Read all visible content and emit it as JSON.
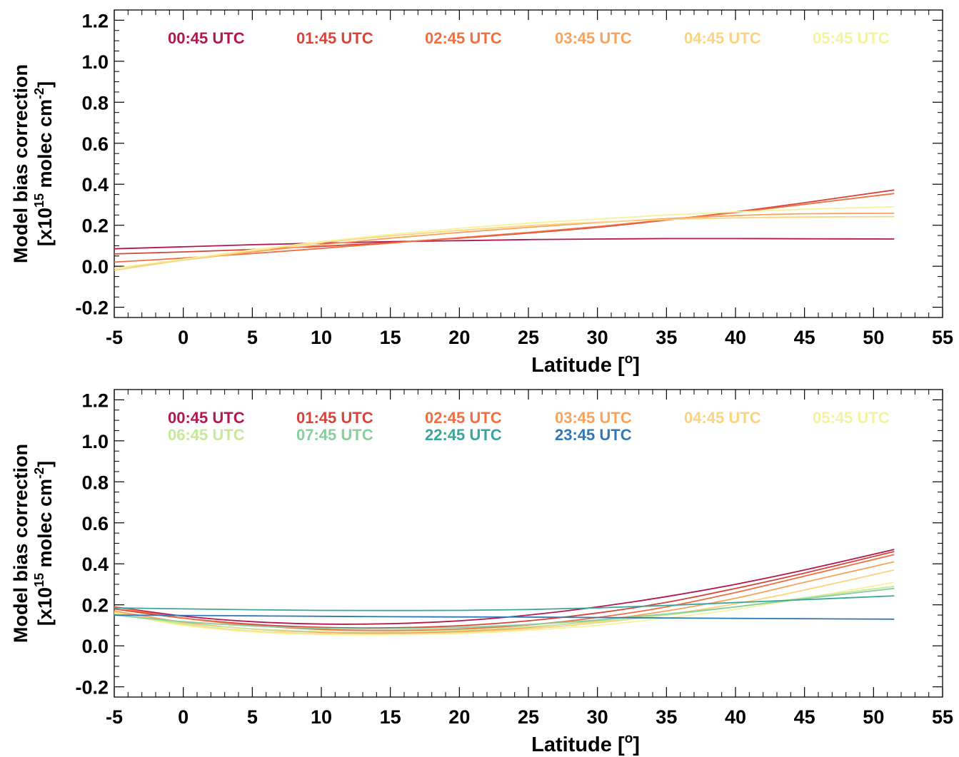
{
  "chart_data": [
    {
      "type": "line",
      "xlabel": "Latitude [",
      "xlabel_sup": "o",
      "xlabel_end": "]",
      "ylabel_line1": "Model bias correction",
      "ylabel_line2_pre": "[x10",
      "ylabel_line2_sup1": "15",
      "ylabel_line2_mid": " molec cm",
      "ylabel_line2_sup2": "-2",
      "ylabel_line2_end": "]",
      "xlim": [
        -5,
        55
      ],
      "ylim": [
        -0.25,
        1.25
      ],
      "x_ticks": [
        "-5",
        "0",
        "5",
        "10",
        "15",
        "20",
        "25",
        "30",
        "35",
        "40",
        "45",
        "50",
        "55"
      ],
      "y_ticks": [
        "-0.2",
        "0.0",
        "0.2",
        "0.4",
        "0.6",
        "0.8",
        "1.0",
        "1.2"
      ],
      "x_sample": [
        -5,
        0,
        5,
        10,
        15,
        20,
        25,
        30,
        35,
        40,
        45,
        51.5
      ],
      "series": [
        {
          "name": "00:45 UTC",
          "color": "#b2184f",
          "values": [
            0.085,
            0.095,
            0.105,
            0.113,
            0.12,
            0.125,
            0.13,
            0.133,
            0.135,
            0.135,
            0.134,
            0.133
          ]
        },
        {
          "name": "01:45 UTC",
          "color": "#d7443a",
          "values": [
            0.06,
            0.07,
            0.082,
            0.097,
            0.115,
            0.137,
            0.162,
            0.19,
            0.225,
            0.265,
            0.31,
            0.372
          ]
        },
        {
          "name": "02:45 UTC",
          "color": "#ef6f40",
          "values": [
            0.02,
            0.04,
            0.062,
            0.087,
            0.113,
            0.139,
            0.165,
            0.193,
            0.226,
            0.262,
            0.302,
            0.355
          ]
        },
        {
          "name": "03:45 UTC",
          "color": "#f8a35c",
          "values": [
            -0.01,
            0.03,
            0.07,
            0.105,
            0.137,
            0.165,
            0.19,
            0.213,
            0.232,
            0.247,
            0.256,
            0.258
          ]
        },
        {
          "name": "04:45 UTC",
          "color": "#fcd480",
          "values": [
            -0.02,
            0.03,
            0.075,
            0.115,
            0.148,
            0.175,
            0.198,
            0.215,
            0.228,
            0.236,
            0.24,
            0.242
          ]
        },
        {
          "name": "05:45 UTC",
          "color": "#f5f39d",
          "values": [
            -0.01,
            0.035,
            0.08,
            0.12,
            0.155,
            0.185,
            0.21,
            0.23,
            0.25,
            0.265,
            0.278,
            0.29
          ]
        }
      ]
    },
    {
      "type": "line",
      "xlabel": "Latitude [",
      "xlabel_sup": "o",
      "xlabel_end": "]",
      "ylabel_line1": "Model bias correction",
      "ylabel_line2_pre": "[x10",
      "ylabel_line2_sup1": "15",
      "ylabel_line2_mid": " molec cm",
      "ylabel_line2_sup2": "-2",
      "ylabel_line2_end": "]",
      "xlim": [
        -5,
        55
      ],
      "ylim": [
        -0.25,
        1.25
      ],
      "x_ticks": [
        "-5",
        "0",
        "5",
        "10",
        "15",
        "20",
        "25",
        "30",
        "35",
        "40",
        "45",
        "50",
        "55"
      ],
      "y_ticks": [
        "-0.2",
        "0.0",
        "0.2",
        "0.4",
        "0.6",
        "0.8",
        "1.0",
        "1.2"
      ],
      "x_sample": [
        -5,
        0,
        5,
        10,
        15,
        20,
        25,
        30,
        35,
        40,
        45,
        51.5
      ],
      "series": [
        {
          "name": "00:45 UTC",
          "color": "#b2184f",
          "values": [
            0.19,
            0.145,
            0.118,
            0.106,
            0.108,
            0.122,
            0.15,
            0.19,
            0.24,
            0.3,
            0.37,
            0.47
          ]
        },
        {
          "name": "01:45 UTC",
          "color": "#d7443a",
          "values": [
            0.18,
            0.135,
            0.105,
            0.09,
            0.088,
            0.098,
            0.122,
            0.16,
            0.212,
            0.28,
            0.355,
            0.46
          ]
        },
        {
          "name": "02:45 UTC",
          "color": "#ef6f40",
          "values": [
            0.19,
            0.135,
            0.1,
            0.08,
            0.075,
            0.082,
            0.102,
            0.138,
            0.19,
            0.26,
            0.34,
            0.445
          ]
        },
        {
          "name": "03:45 UTC",
          "color": "#f8a35c",
          "values": [
            0.17,
            0.115,
            0.082,
            0.066,
            0.062,
            0.07,
            0.09,
            0.123,
            0.17,
            0.232,
            0.31,
            0.41
          ]
        },
        {
          "name": "04:45 UTC",
          "color": "#fcd480",
          "values": [
            0.165,
            0.105,
            0.072,
            0.058,
            0.056,
            0.064,
            0.083,
            0.112,
            0.152,
            0.205,
            0.272,
            0.37
          ]
        },
        {
          "name": "05:45 UTC",
          "color": "#f5f39d",
          "values": [
            0.16,
            0.1,
            0.068,
            0.055,
            0.054,
            0.06,
            0.076,
            0.1,
            0.135,
            0.178,
            0.232,
            0.31
          ]
        },
        {
          "name": "06:45 UTC",
          "color": "#c9e99a",
          "values": [
            0.155,
            0.11,
            0.083,
            0.07,
            0.068,
            0.076,
            0.093,
            0.118,
            0.15,
            0.19,
            0.235,
            0.29
          ]
        },
        {
          "name": "07:45 UTC",
          "color": "#88cf9f",
          "values": [
            0.15,
            0.118,
            0.097,
            0.086,
            0.084,
            0.09,
            0.104,
            0.126,
            0.155,
            0.19,
            0.23,
            0.28
          ]
        },
        {
          "name": "22:45 UTC",
          "color": "#3aa59a",
          "values": [
            0.185,
            0.18,
            0.176,
            0.173,
            0.172,
            0.173,
            0.177,
            0.185,
            0.197,
            0.211,
            0.225,
            0.244
          ]
        },
        {
          "name": "23:45 UTC",
          "color": "#3378b6",
          "values": [
            0.15,
            0.148,
            0.146,
            0.144,
            0.142,
            0.141,
            0.14,
            0.138,
            0.136,
            0.134,
            0.132,
            0.13
          ]
        }
      ]
    }
  ]
}
